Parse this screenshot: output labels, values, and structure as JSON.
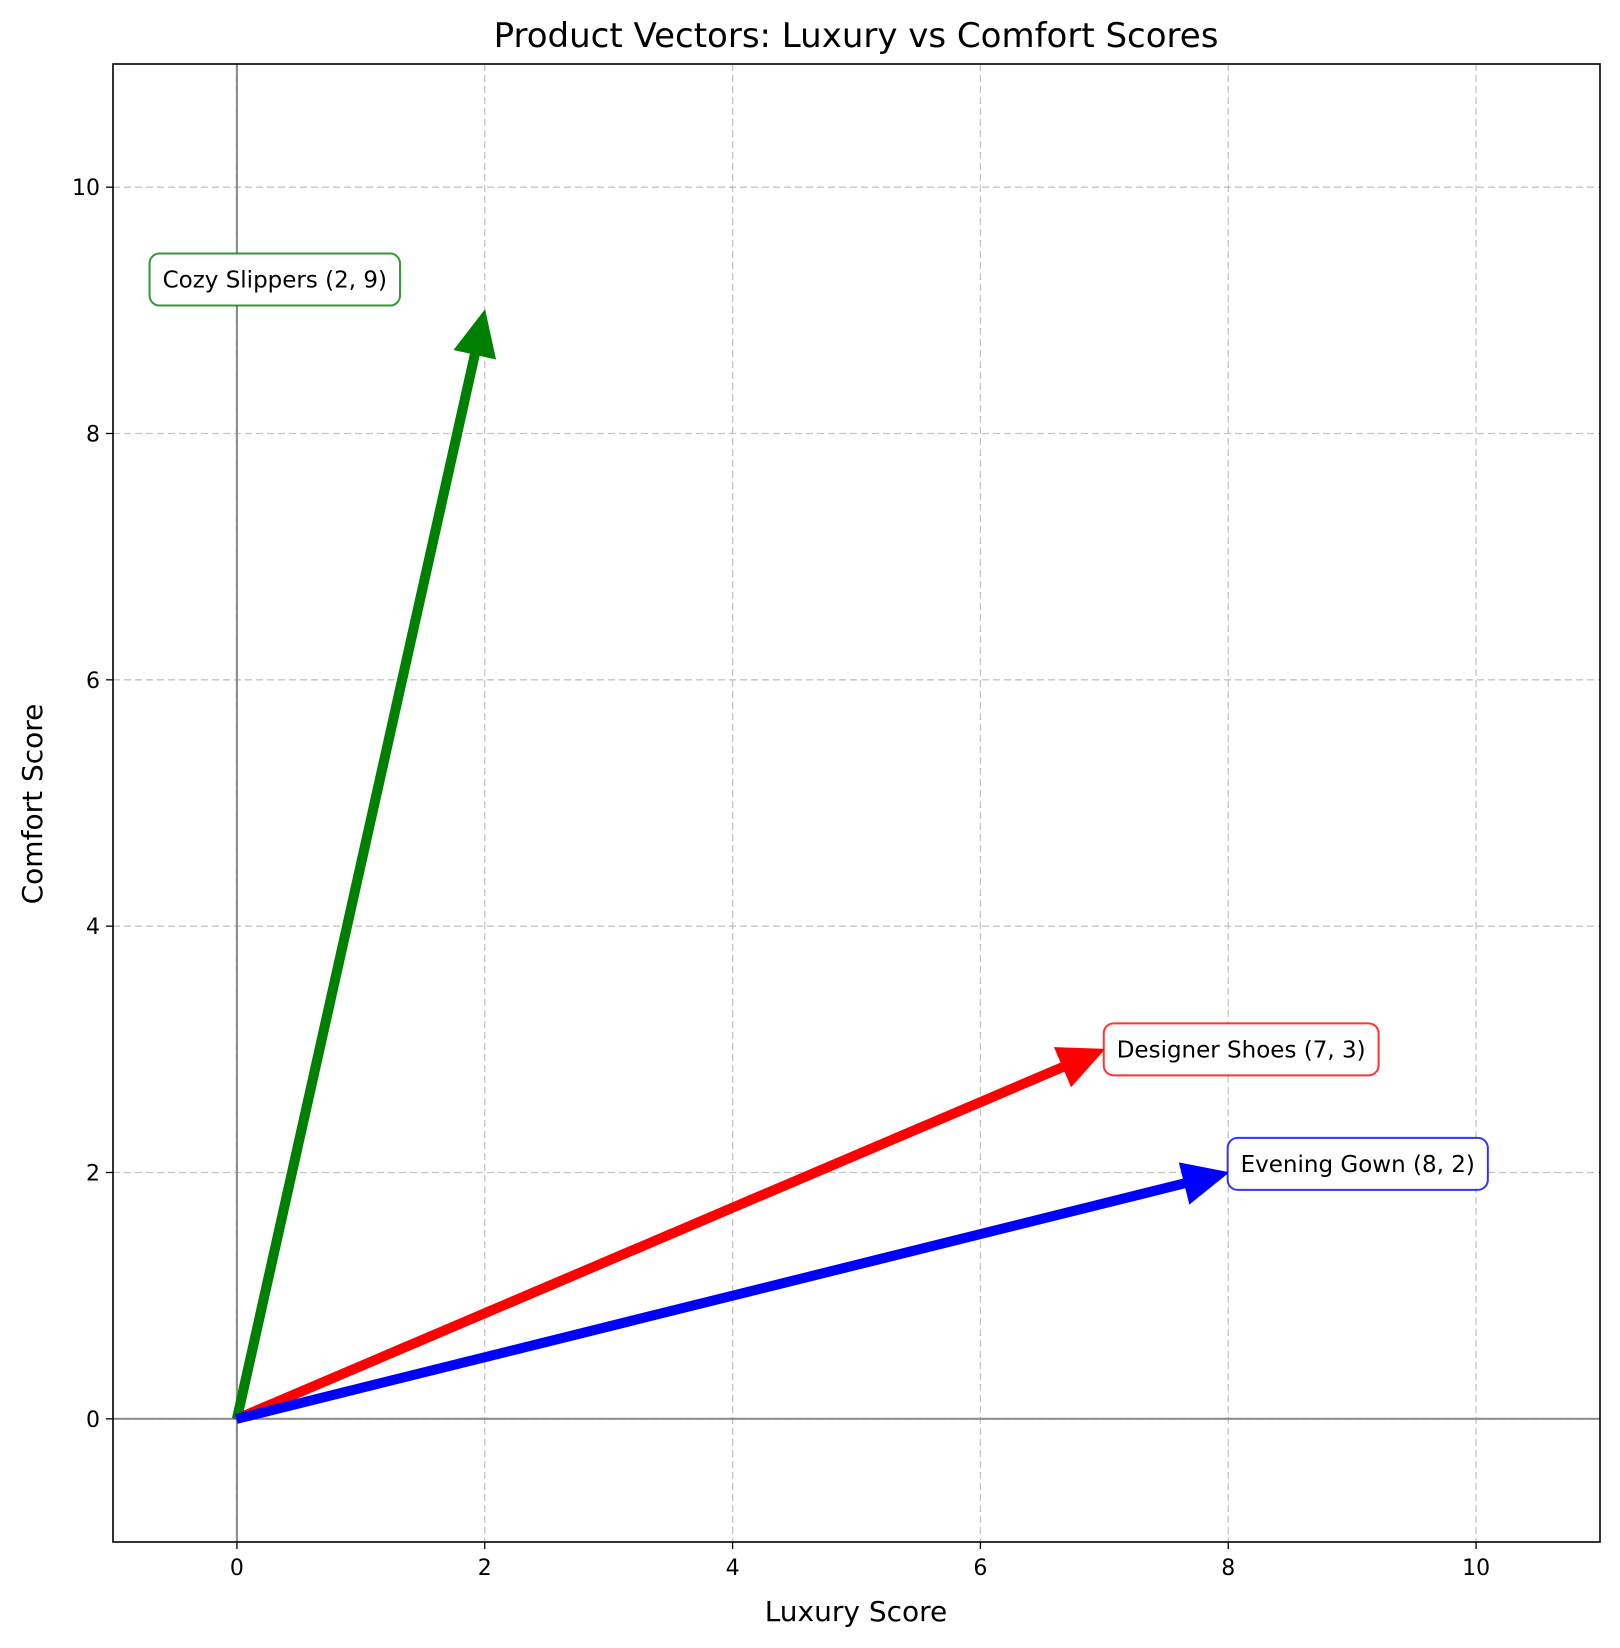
{
  "chart_data": {
    "type": "quiver",
    "title": "Product Vectors: Luxury vs Comfort Scores",
    "xlabel": "Luxury Score",
    "ylabel": "Comfort Score",
    "xlim": [
      -1,
      11
    ],
    "ylim": [
      -1,
      11
    ],
    "xticks": [
      0,
      2,
      4,
      6,
      8,
      10
    ],
    "yticks": [
      0,
      2,
      4,
      6,
      8,
      10
    ],
    "grid": true,
    "origin_lines": true,
    "vectors": [
      {
        "label": "Designer Shoes (7, 3)",
        "x": 7,
        "y": 3,
        "color": "#ff0000",
        "label_x": 7.1,
        "label_y": 3.0
      },
      {
        "label": "Cozy Slippers (2, 9)",
        "x": 2,
        "y": 9,
        "color": "#008000",
        "label_x": -0.6,
        "label_y": 9.25
      },
      {
        "label": "Evening Gown (8, 2)",
        "x": 8,
        "y": 2,
        "color": "#0000ff",
        "label_x": 8.1,
        "label_y": 2.07
      }
    ]
  }
}
